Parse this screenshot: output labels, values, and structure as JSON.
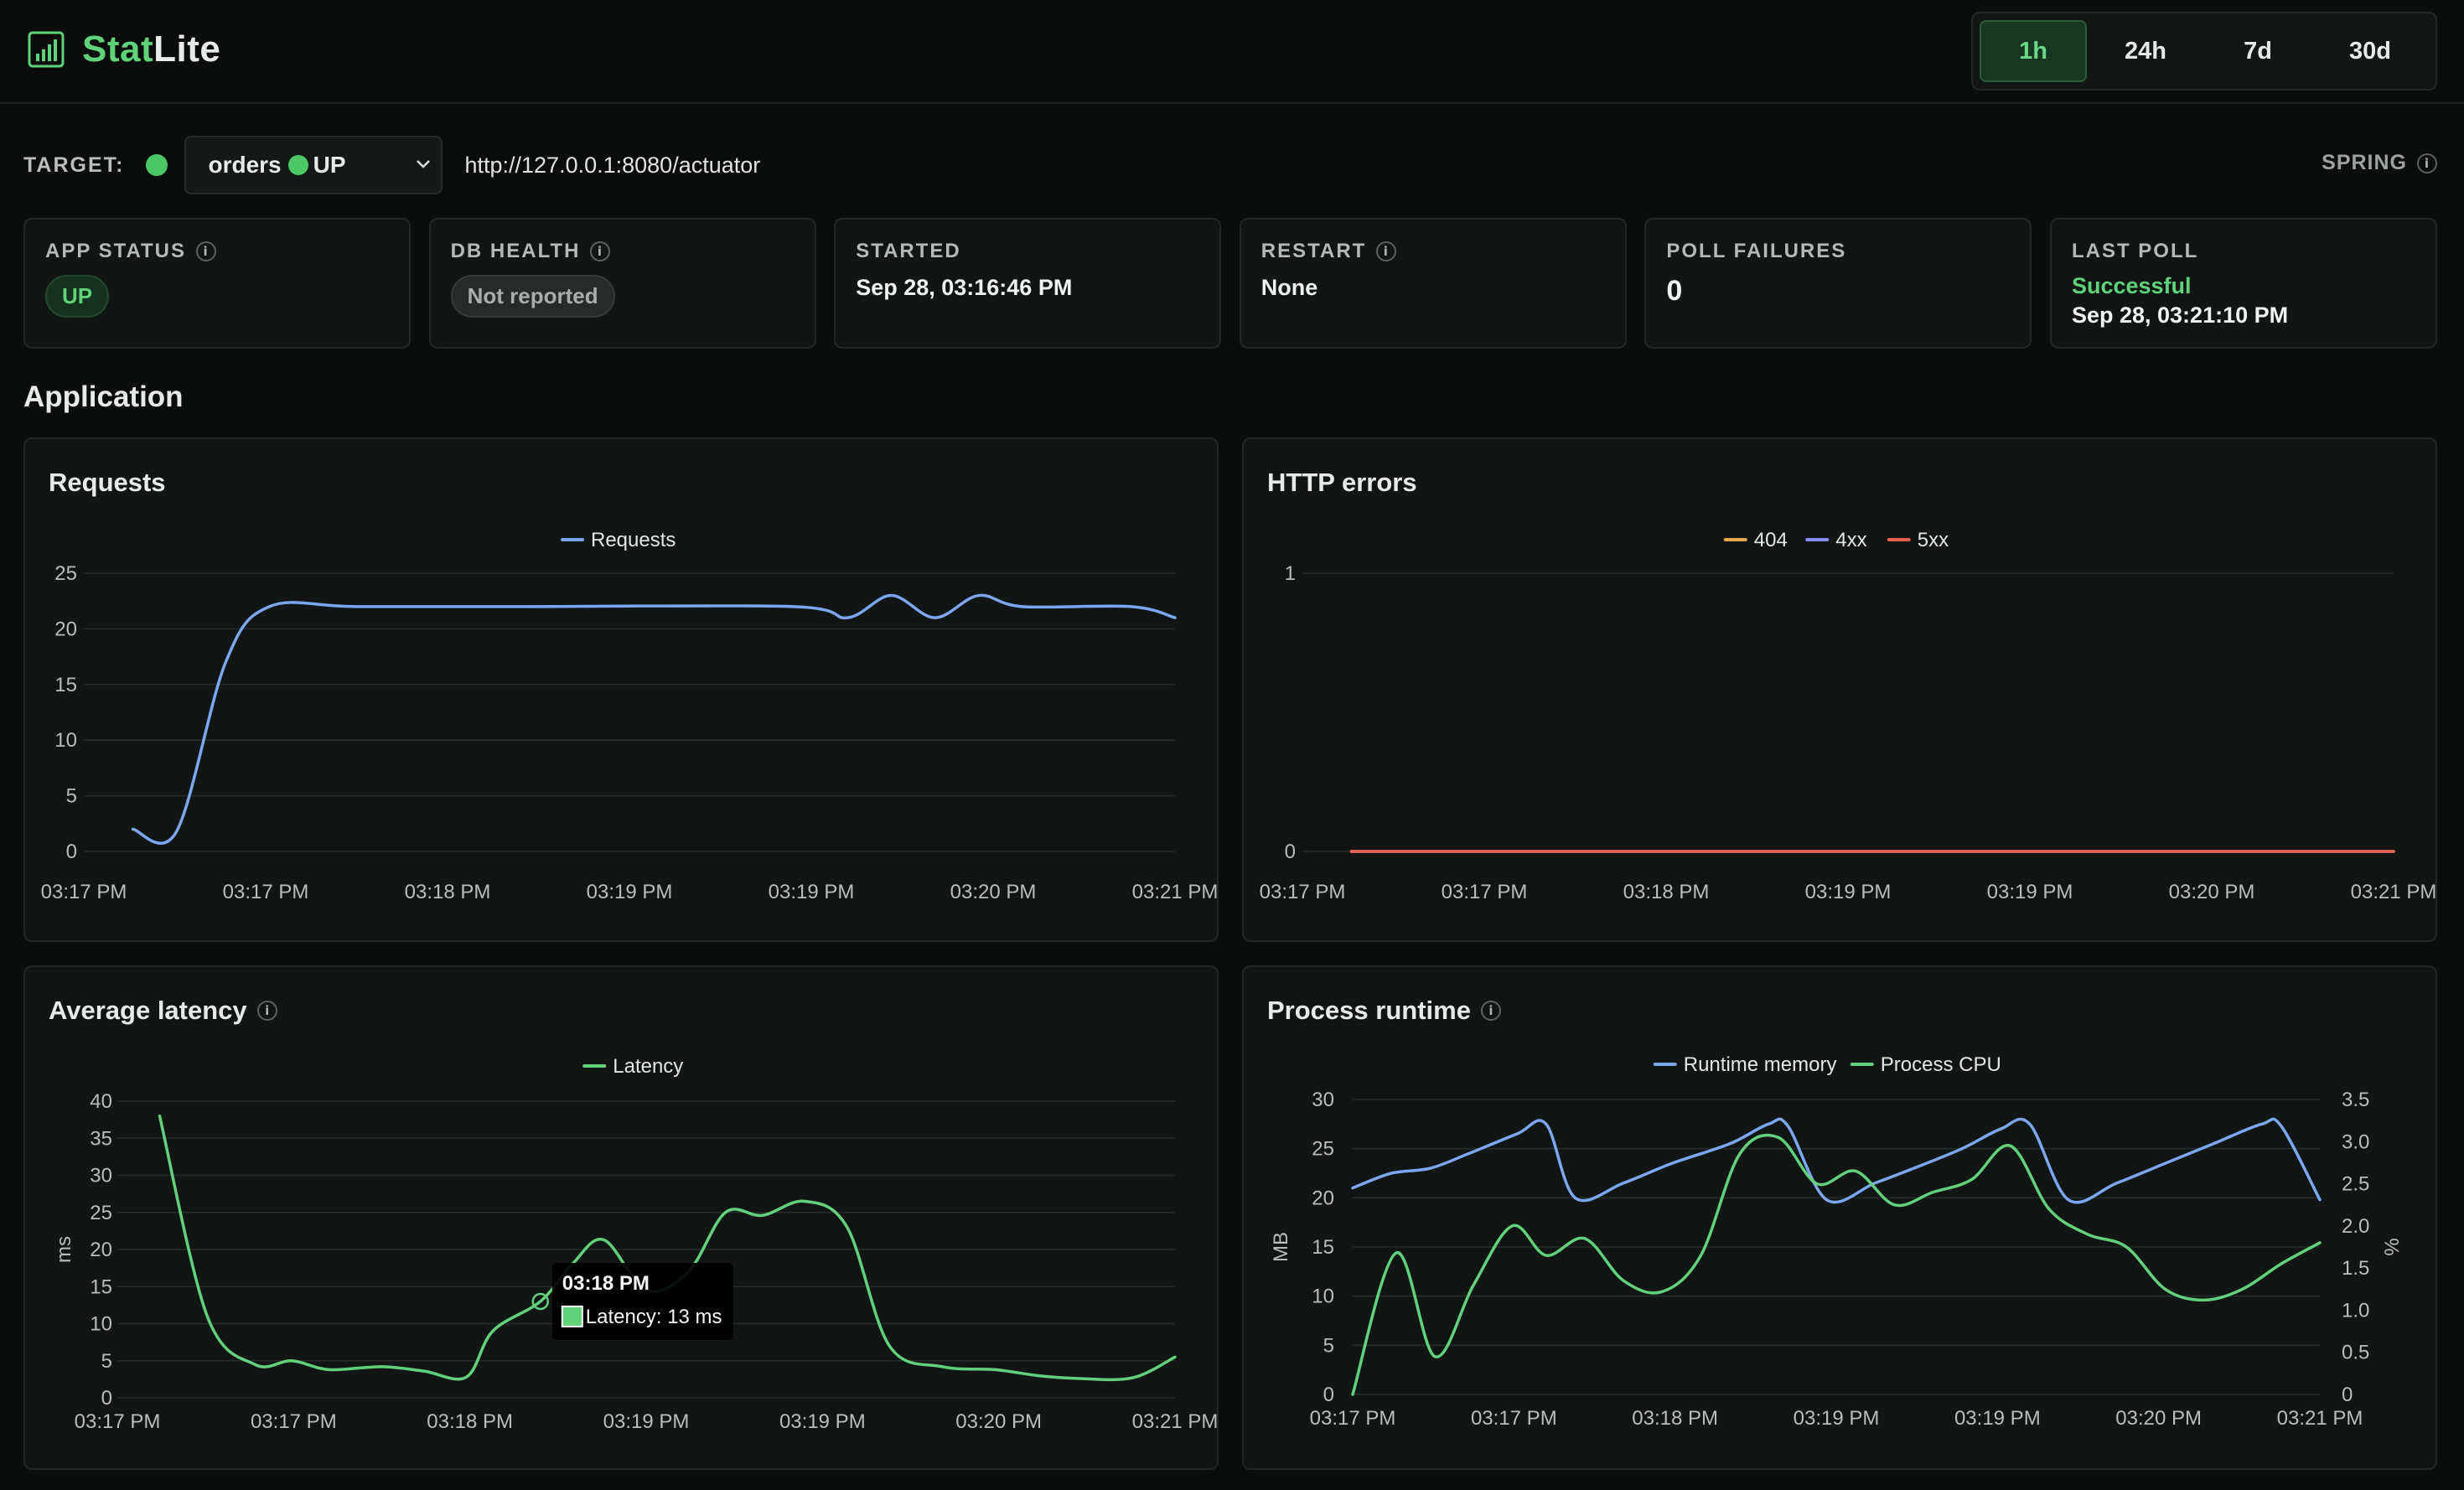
{
  "app": {
    "brand_part1": "Stat",
    "brand_part2": "Lite",
    "brand_color": "#5fd27a",
    "icon": "bar-chart-icon"
  },
  "time_range": {
    "options": [
      "1h",
      "24h",
      "7d",
      "30d"
    ],
    "selected": "1h"
  },
  "target": {
    "label": "TARGET:",
    "status_color": "#4cc766",
    "selected_app": "orders",
    "selected_status": "UP",
    "url": "http://127.0.0.1:8080/actuator",
    "framework": "SPRING"
  },
  "cards": {
    "app_status": {
      "label": "APP STATUS",
      "value": "UP"
    },
    "db_health": {
      "label": "DB HEALTH",
      "value": "Not reported"
    },
    "started": {
      "label": "STARTED",
      "value": "Sep 28, 03:16:46 PM"
    },
    "restart": {
      "label": "RESTART",
      "value": "None"
    },
    "poll_failures": {
      "label": "POLL FAILURES",
      "value": "0"
    },
    "last_poll": {
      "label": "LAST POLL",
      "status": "Successful",
      "value": "Sep 28, 03:21:10 PM"
    }
  },
  "section": {
    "title": "Application"
  },
  "panels": {
    "requests": {
      "title": "Requests"
    },
    "http_errors": {
      "title": "HTTP errors"
    },
    "latency": {
      "title": "Average latency"
    },
    "runtime": {
      "title": "Process runtime"
    }
  },
  "chart_data": [
    {
      "id": "requests",
      "type": "line",
      "x": [
        "03:17 PM",
        "03:17 PM",
        "03:18 PM",
        "03:19 PM",
        "03:19 PM",
        "03:20 PM",
        "03:21 PM"
      ],
      "xlabel": "",
      "ylabel": "",
      "ylim": [
        0,
        25
      ],
      "yticks": [
        0,
        5,
        10,
        15,
        20,
        25
      ],
      "legend": "top-center",
      "series": [
        {
          "name": "Requests",
          "color": "#7ba7f0",
          "points": [
            [
              0.045,
              2
            ],
            [
              0.085,
              1.8
            ],
            [
              0.13,
              17
            ],
            [
              0.17,
              22
            ],
            [
              0.25,
              22
            ],
            [
              0.4,
              22
            ],
            [
              0.65,
              22
            ],
            [
              0.7,
              21
            ],
            [
              0.74,
              23
            ],
            [
              0.78,
              21
            ],
            [
              0.82,
              23
            ],
            [
              0.86,
              22
            ],
            [
              0.96,
              22
            ],
            [
              1.0,
              21
            ]
          ]
        }
      ]
    },
    {
      "id": "http_errors",
      "type": "line",
      "x": [
        "03:17 PM",
        "03:17 PM",
        "03:18 PM",
        "03:19 PM",
        "03:19 PM",
        "03:20 PM",
        "03:21 PM"
      ],
      "xlabel": "",
      "ylabel": "",
      "ylim": [
        0,
        1
      ],
      "yticks": [
        0,
        1
      ],
      "legend": "top-center",
      "series": [
        {
          "name": "404",
          "color": "#e6a84a",
          "points": [
            [
              0.045,
              0
            ],
            [
              1.0,
              0
            ]
          ]
        },
        {
          "name": "4xx",
          "color": "#8b8cf2",
          "points": [
            [
              0.045,
              0
            ],
            [
              1.0,
              0
            ]
          ]
        },
        {
          "name": "5xx",
          "color": "#e5604f",
          "points": [
            [
              0.045,
              0
            ],
            [
              1.0,
              0
            ]
          ]
        }
      ]
    },
    {
      "id": "latency",
      "type": "line",
      "x": [
        "03:17 PM",
        "03:17 PM",
        "03:18 PM",
        "03:19 PM",
        "03:19 PM",
        "03:20 PM",
        "03:21 PM"
      ],
      "xlabel": "",
      "ylabel": "ms",
      "ylim": [
        0,
        40
      ],
      "yticks": [
        0,
        5,
        10,
        15,
        20,
        25,
        30,
        35,
        40
      ],
      "legend": "top-center",
      "tooltip": {
        "title": "03:18 PM",
        "text": "Latency: 13 ms"
      },
      "series": [
        {
          "name": "Latency",
          "color": "#62d17b",
          "points": [
            [
              0.04,
              38
            ],
            [
              0.085,
              11
            ],
            [
              0.13,
              4.5
            ],
            [
              0.165,
              5
            ],
            [
              0.2,
              3.8
            ],
            [
              0.25,
              4.2
            ],
            [
              0.29,
              3.6
            ],
            [
              0.33,
              2.8
            ],
            [
              0.355,
              9
            ],
            [
              0.4,
              13
            ],
            [
              0.43,
              18
            ],
            [
              0.46,
              21.3
            ],
            [
              0.5,
              14.5
            ],
            [
              0.54,
              17
            ],
            [
              0.575,
              25
            ],
            [
              0.61,
              24.6
            ],
            [
              0.65,
              26.5
            ],
            [
              0.69,
              23
            ],
            [
              0.73,
              7
            ],
            [
              0.78,
              4.2
            ],
            [
              0.83,
              3.8
            ],
            [
              0.87,
              3.0
            ],
            [
              0.91,
              2.6
            ],
            [
              0.96,
              2.7
            ],
            [
              1.0,
              5.5
            ]
          ]
        }
      ]
    },
    {
      "id": "runtime",
      "type": "line",
      "x": [
        "03:17 PM",
        "03:17 PM",
        "03:18 PM",
        "03:19 PM",
        "03:19 PM",
        "03:20 PM",
        "03:21 PM"
      ],
      "xlabel": "",
      "ylabel": "MB",
      "ylabel_right": "%",
      "ylim": [
        0,
        30
      ],
      "ylim_right": [
        0,
        3.5
      ],
      "yticks": [
        0,
        5,
        10,
        15,
        20,
        25,
        30
      ],
      "yticks_right": [
        "0",
        "0.5",
        "1.0",
        "1.5",
        "2.0",
        "2.5",
        "3.0",
        "3.5"
      ],
      "legend": "top-center",
      "series": [
        {
          "name": "Runtime memory",
          "color": "#7ba7f0",
          "axis": "left",
          "points": [
            [
              0.0,
              21
            ],
            [
              0.04,
              22.5
            ],
            [
              0.08,
              23
            ],
            [
              0.12,
              24.5
            ],
            [
              0.17,
              26.5
            ],
            [
              0.2,
              27.5
            ],
            [
              0.23,
              20
            ],
            [
              0.28,
              21.5
            ],
            [
              0.33,
              23.5
            ],
            [
              0.39,
              25.5
            ],
            [
              0.43,
              27.5
            ],
            [
              0.45,
              27.3
            ],
            [
              0.49,
              19.8
            ],
            [
              0.54,
              21.5
            ],
            [
              0.58,
              23
            ],
            [
              0.63,
              25
            ],
            [
              0.67,
              27
            ],
            [
              0.7,
              27.5
            ],
            [
              0.74,
              19.8
            ],
            [
              0.79,
              21.5
            ],
            [
              0.84,
              23.5
            ],
            [
              0.89,
              25.5
            ],
            [
              0.94,
              27.5
            ],
            [
              0.96,
              27.3
            ],
            [
              1.0,
              19.8
            ]
          ]
        },
        {
          "name": "Process CPU",
          "color": "#62d17b",
          "axis": "right",
          "points": [
            [
              0.0,
              0.0
            ],
            [
              0.045,
              1.68
            ],
            [
              0.085,
              0.45
            ],
            [
              0.125,
              1.3
            ],
            [
              0.165,
              2.0
            ],
            [
              0.2,
              1.65
            ],
            [
              0.24,
              1.85
            ],
            [
              0.28,
              1.35
            ],
            [
              0.32,
              1.22
            ],
            [
              0.36,
              1.65
            ],
            [
              0.4,
              2.85
            ],
            [
              0.44,
              3.05
            ],
            [
              0.48,
              2.5
            ],
            [
              0.52,
              2.65
            ],
            [
              0.56,
              2.25
            ],
            [
              0.6,
              2.4
            ],
            [
              0.64,
              2.55
            ],
            [
              0.68,
              2.95
            ],
            [
              0.72,
              2.2
            ],
            [
              0.76,
              1.9
            ],
            [
              0.8,
              1.75
            ],
            [
              0.84,
              1.25
            ],
            [
              0.88,
              1.12
            ],
            [
              0.92,
              1.25
            ],
            [
              0.96,
              1.55
            ],
            [
              1.0,
              1.8
            ]
          ]
        }
      ]
    }
  ]
}
